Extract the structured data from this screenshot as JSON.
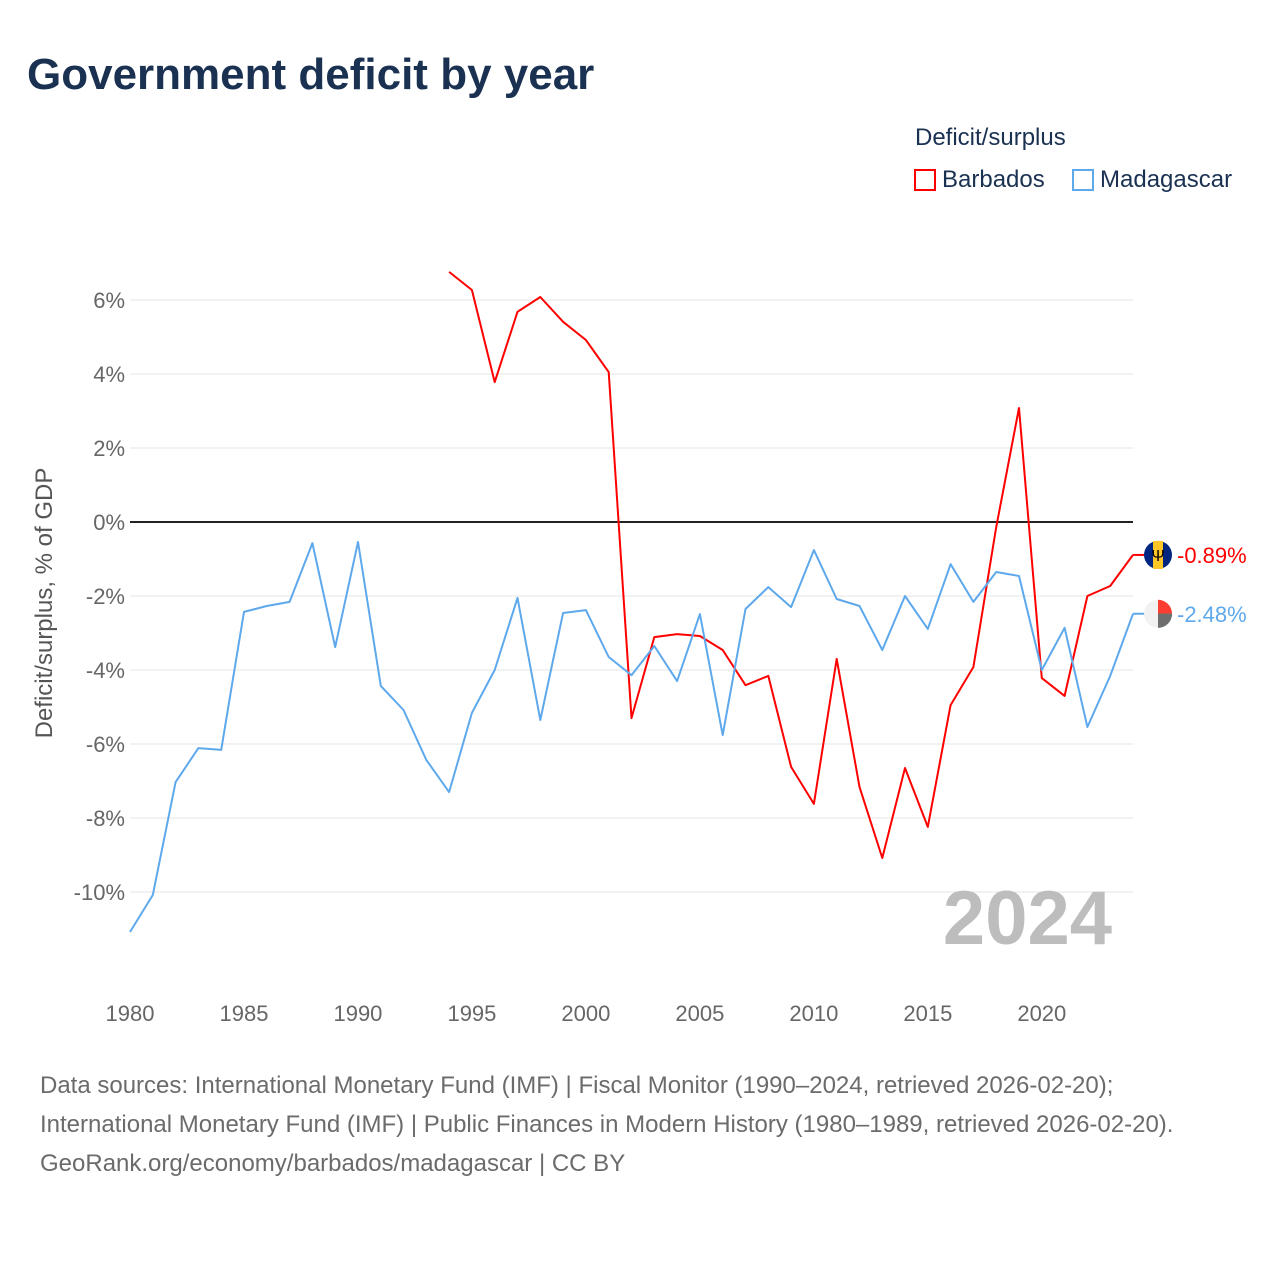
{
  "title": "Government deficit by year",
  "legend": {
    "title": "Deficit/surplus",
    "items": [
      {
        "name": "Barbados",
        "color": "#ff0000"
      },
      {
        "name": "Madagascar",
        "color": "#5ea8ec"
      }
    ]
  },
  "footer": {
    "line1": "Data sources: International Monetary Fund (IMF) | Fiscal Monitor (1990–2024, retrieved 2026-02-20); International Monetary Fund (IMF) | Public Finances in Modern History (1980–1989, retrieved 2026-02-20).",
    "line2": "GeoRank.org/economy/barbados/madagascar | CC BY"
  },
  "chart_data": {
    "type": "line",
    "title": "Government deficit by year",
    "xlabel": "",
    "ylabel": "Deficit/surplus, % of GDP",
    "xlim": [
      1980,
      2024
    ],
    "ylim": [
      -11.5,
      7
    ],
    "yticks": [
      6,
      4,
      2,
      0,
      -2,
      -4,
      -6,
      -8,
      -10
    ],
    "ytick_labels": [
      "6%",
      "4%",
      "2%",
      "0%",
      "-2%",
      "-4%",
      "-6%",
      "-8%",
      "-10%"
    ],
    "xticks": [
      1980,
      1985,
      1990,
      1995,
      2000,
      2005,
      2010,
      2015,
      2020
    ],
    "xtick_labels": [
      "1980",
      "1985",
      "1990",
      "1995",
      "2000",
      "2005",
      "2010",
      "2015",
      "2020"
    ],
    "year_watermark": "2024",
    "grid": true,
    "legend_position": "top-right",
    "series": [
      {
        "name": "Barbados",
        "color": "#ff0000",
        "end_label": "-0.89%",
        "start_year": 1994,
        "values": [
          6.76,
          6.27,
          3.78,
          5.68,
          6.08,
          5.41,
          4.92,
          4.05,
          -5.3,
          -3.11,
          -3.03,
          -3.08,
          -3.46,
          -4.41,
          -4.16,
          -6.62,
          -7.62,
          -3.7,
          -7.16,
          -9.08,
          -6.65,
          -8.24,
          -4.95,
          -3.92,
          -0.14,
          3.08,
          -4.22,
          -4.7,
          -2.0,
          -1.73,
          -0.89
        ]
      },
      {
        "name": "Madagascar",
        "color": "#5ea8ec",
        "end_label": "-2.48%",
        "start_year": 1980,
        "values": [
          -11.08,
          -10.08,
          -7.03,
          -6.11,
          -6.16,
          -2.43,
          -2.27,
          -2.16,
          -0.57,
          -3.38,
          -0.54,
          -4.43,
          -5.08,
          -6.43,
          -7.3,
          -5.16,
          -4.0,
          -2.05,
          -5.35,
          -2.46,
          -2.38,
          -3.65,
          -4.14,
          -3.35,
          -4.3,
          -2.49,
          -5.76,
          -2.35,
          -1.76,
          -2.3,
          -0.76,
          -2.08,
          -2.27,
          -3.46,
          -2.0,
          -2.89,
          -1.14,
          -2.16,
          -1.35,
          -1.46,
          -4.0,
          -2.86,
          -5.54,
          -4.16,
          -2.48
        ]
      }
    ]
  }
}
